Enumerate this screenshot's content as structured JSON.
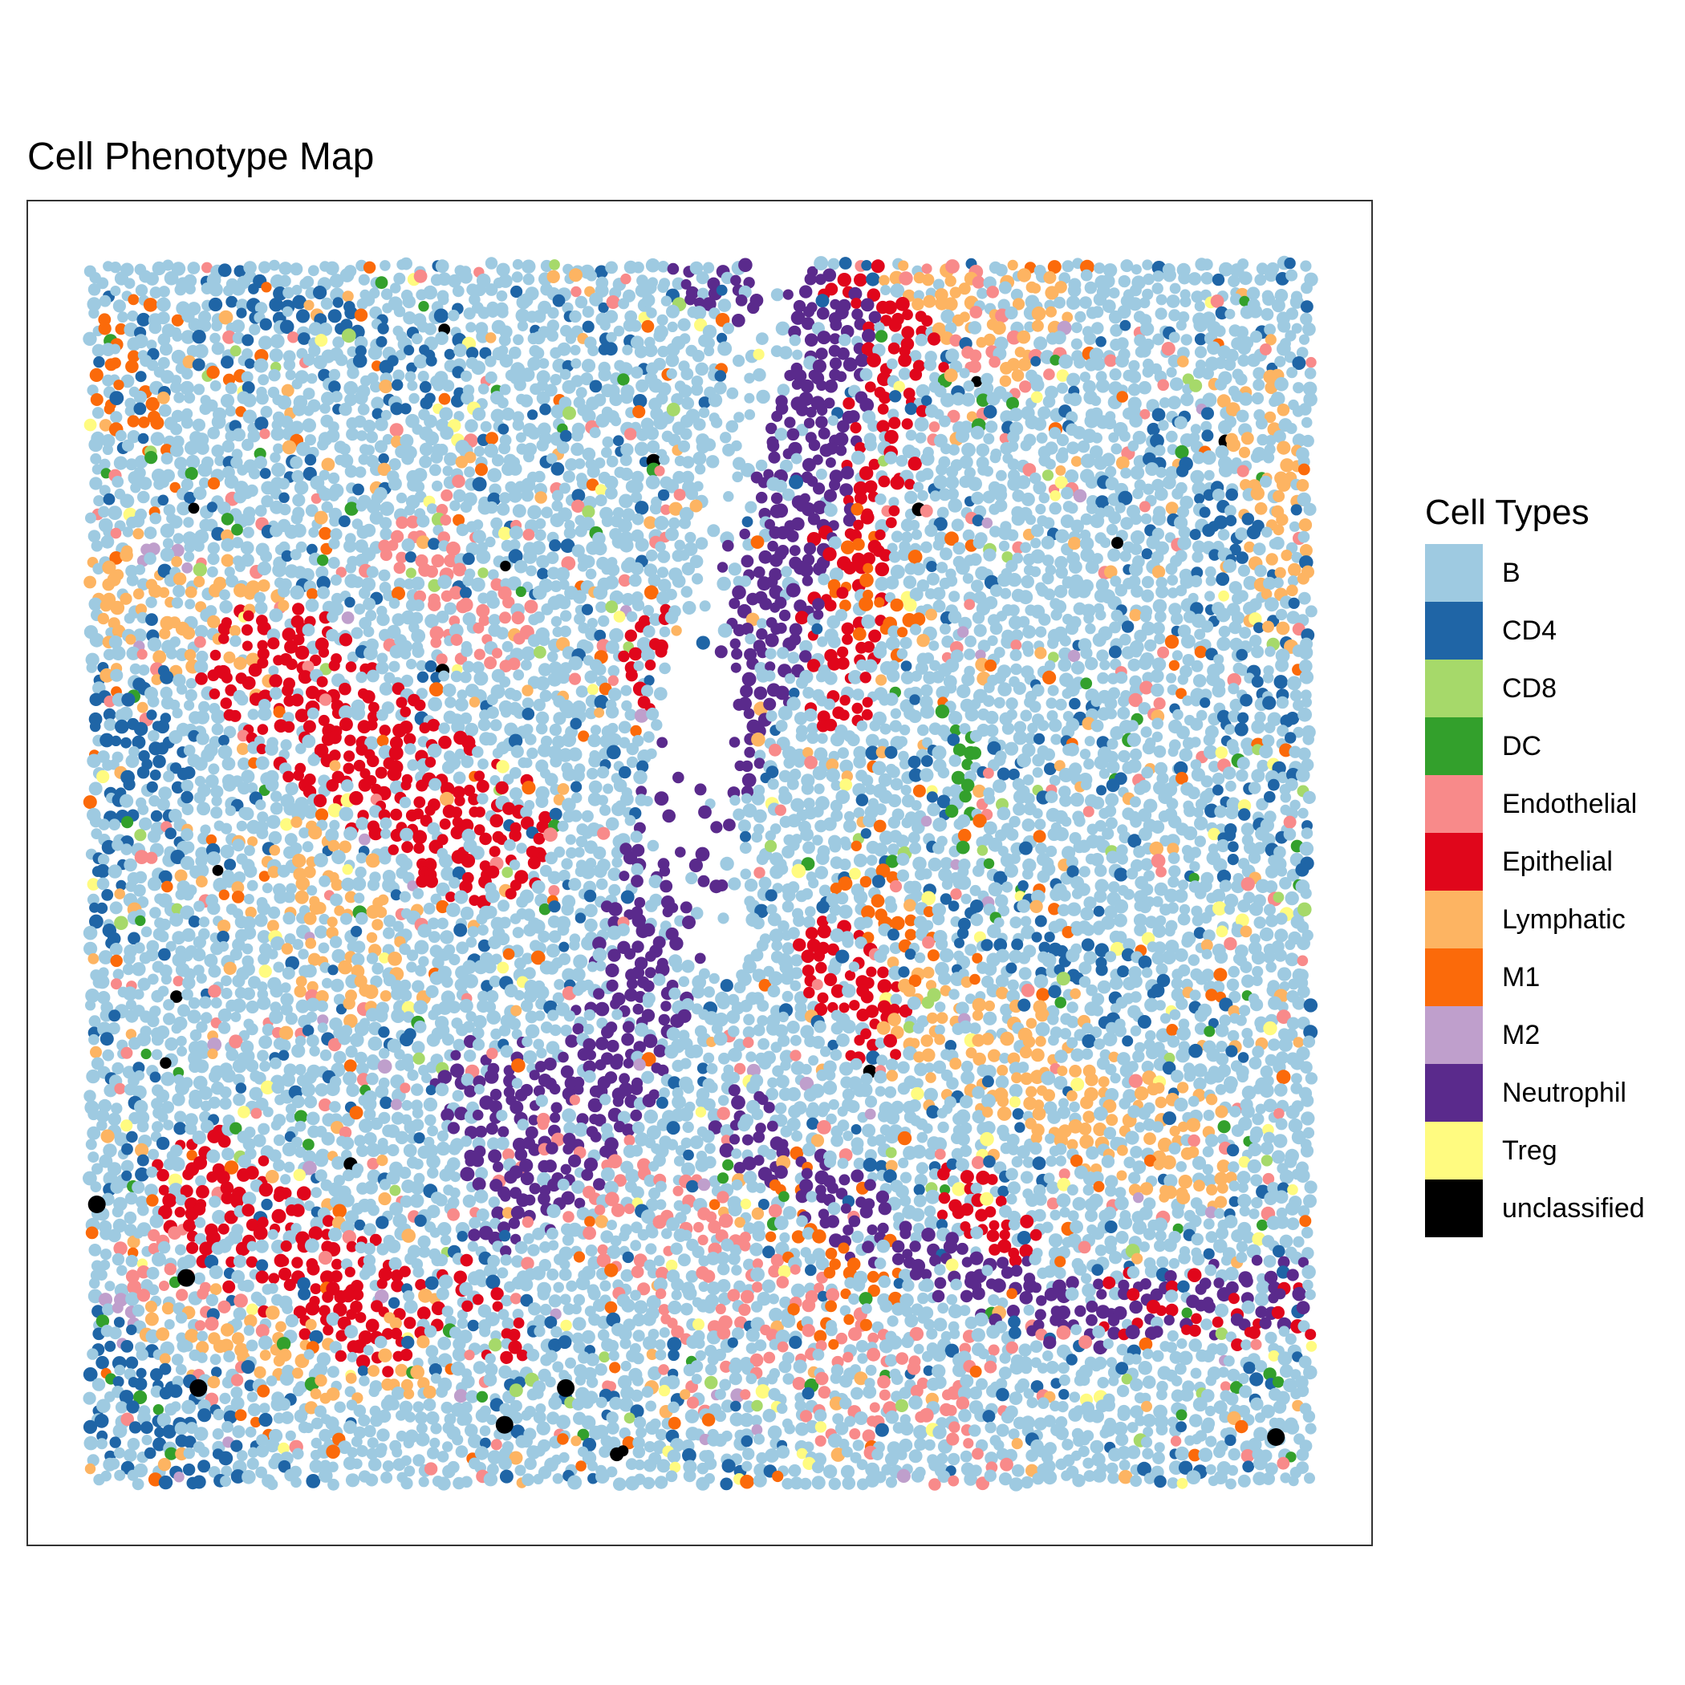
{
  "title": "Cell Phenotype Map",
  "chart_data": {
    "type": "scatter",
    "title": "Cell Phenotype Map",
    "xlabel": "",
    "ylabel": "",
    "axes_visible": false,
    "grid": false,
    "legend_position": "right",
    "legend_title": "Cell Types",
    "categories": [
      {
        "name": "B",
        "color": "#9ecae1"
      },
      {
        "name": "CD4",
        "color": "#1f65a6"
      },
      {
        "name": "CD8",
        "color": "#a6d96a"
      },
      {
        "name": "DC",
        "color": "#33a02c"
      },
      {
        "name": "Endothelial",
        "color": "#f88a8a"
      },
      {
        "name": "Epithelial",
        "color": "#e0061b"
      },
      {
        "name": "Lymphatic",
        "color": "#fdb462"
      },
      {
        "name": "M1",
        "color": "#fb6a0a"
      },
      {
        "name": "M2",
        "color": "#bf9fcc"
      },
      {
        "name": "Neutrophil",
        "color": "#5a2a8c"
      },
      {
        "name": "Treg",
        "color": "#fffb80"
      },
      {
        "name": "unclassified",
        "color": "#000000"
      }
    ],
    "base_category": "B",
    "regions": [
      {
        "category": "Neutrophil",
        "path": [
          [
            0.52,
            0.0
          ],
          [
            0.6,
            0.05
          ],
          [
            0.58,
            0.2
          ],
          [
            0.54,
            0.32
          ],
          [
            0.49,
            0.45
          ],
          [
            0.45,
            0.6
          ],
          [
            0.42,
            0.68
          ]
        ],
        "radius": 0.045,
        "density": 0.85
      },
      {
        "category": "Neutrophil",
        "path": [
          [
            0.33,
            0.68
          ],
          [
            0.38,
            0.72
          ],
          [
            0.35,
            0.76
          ]
        ],
        "radius": 0.05,
        "density": 0.8
      },
      {
        "category": "Neutrophil",
        "path": [
          [
            0.53,
            0.7
          ],
          [
            0.65,
            0.8
          ],
          [
            0.8,
            0.86
          ],
          [
            0.98,
            0.84
          ]
        ],
        "radius": 0.03,
        "density": 0.75
      },
      {
        "category": "Epithelial",
        "path": [
          [
            0.15,
            0.33
          ],
          [
            0.24,
            0.41
          ],
          [
            0.32,
            0.47
          ]
        ],
        "radius": 0.06,
        "density": 0.8
      },
      {
        "category": "Epithelial",
        "path": [
          [
            0.1,
            0.76
          ],
          [
            0.16,
            0.81
          ],
          [
            0.24,
            0.86
          ]
        ],
        "radius": 0.05,
        "density": 0.7
      },
      {
        "category": "Epithelial",
        "path": [
          [
            0.61,
            0.0
          ],
          [
            0.67,
            0.07
          ],
          [
            0.63,
            0.2
          ],
          [
            0.61,
            0.35
          ]
        ],
        "radius": 0.035,
        "density": 0.65
      },
      {
        "category": "Epithelial",
        "path": [
          [
            0.46,
            0.31
          ],
          [
            0.5,
            0.42
          ]
        ],
        "radius": 0.03,
        "density": 0.6
      },
      {
        "category": "Epithelial",
        "path": [
          [
            0.61,
            0.57
          ],
          [
            0.64,
            0.62
          ]
        ],
        "radius": 0.035,
        "density": 0.75
      },
      {
        "category": "Epithelial",
        "path": [
          [
            0.72,
            0.76
          ],
          [
            0.75,
            0.8
          ]
        ],
        "radius": 0.03,
        "density": 0.75
      },
      {
        "category": "Epithelial",
        "path": [
          [
            0.85,
            0.85
          ],
          [
            0.98,
            0.86
          ]
        ],
        "radius": 0.03,
        "density": 0.6
      },
      {
        "category": "Epithelial",
        "path": [
          [
            0.3,
            0.83
          ],
          [
            0.34,
            0.88
          ]
        ],
        "radius": 0.02,
        "density": 0.6
      },
      {
        "category": "Lymphatic",
        "path": [
          [
            0.03,
            0.28
          ],
          [
            0.12,
            0.3
          ]
        ],
        "radius": 0.06,
        "density": 0.55
      },
      {
        "category": "Lymphatic",
        "path": [
          [
            0.18,
            0.5
          ],
          [
            0.22,
            0.58
          ]
        ],
        "radius": 0.045,
        "density": 0.5
      },
      {
        "category": "Lymphatic",
        "path": [
          [
            0.67,
            0.62
          ],
          [
            0.78,
            0.67
          ],
          [
            0.9,
            0.73
          ]
        ],
        "radius": 0.05,
        "density": 0.55
      },
      {
        "category": "Lymphatic",
        "path": [
          [
            0.68,
            0.0
          ],
          [
            0.78,
            0.05
          ]
        ],
        "radius": 0.05,
        "density": 0.45
      },
      {
        "category": "Lymphatic",
        "path": [
          [
            0.96,
            0.12
          ],
          [
            0.98,
            0.28
          ]
        ],
        "radius": 0.035,
        "density": 0.5
      },
      {
        "category": "Lymphatic",
        "path": [
          [
            0.08,
            0.87
          ],
          [
            0.25,
            0.9
          ]
        ],
        "radius": 0.04,
        "density": 0.45
      },
      {
        "category": "Endothelial",
        "path": [
          [
            0.28,
            0.24
          ],
          [
            0.32,
            0.3
          ]
        ],
        "radius": 0.04,
        "density": 0.5
      },
      {
        "category": "Endothelial",
        "path": [
          [
            0.7,
            0.02
          ],
          [
            0.76,
            0.08
          ]
        ],
        "radius": 0.035,
        "density": 0.5
      },
      {
        "category": "Endothelial",
        "path": [
          [
            0.4,
            0.72
          ],
          [
            0.55,
            0.88
          ],
          [
            0.7,
            0.95
          ]
        ],
        "radius": 0.06,
        "density": 0.35
      },
      {
        "category": "Endothelial",
        "path": [
          [
            0.05,
            0.82
          ],
          [
            0.12,
            0.9
          ]
        ],
        "radius": 0.04,
        "density": 0.35
      },
      {
        "category": "M1",
        "path": [
          [
            0.6,
            0.78
          ],
          [
            0.62,
            0.84
          ]
        ],
        "radius": 0.05,
        "density": 0.45
      },
      {
        "category": "M1",
        "path": [
          [
            0.62,
            0.23
          ],
          [
            0.66,
            0.3
          ]
        ],
        "radius": 0.03,
        "density": 0.45
      },
      {
        "category": "M1",
        "path": [
          [
            0.64,
            0.52
          ],
          [
            0.7,
            0.58
          ]
        ],
        "radius": 0.03,
        "density": 0.45
      },
      {
        "category": "M1",
        "path": [
          [
            0.01,
            0.07
          ],
          [
            0.04,
            0.12
          ]
        ],
        "radius": 0.025,
        "density": 0.5
      },
      {
        "category": "CD4",
        "path": [
          [
            0.01,
            0.35
          ],
          [
            0.05,
            0.42
          ]
        ],
        "radius": 0.04,
        "density": 0.6
      },
      {
        "category": "CD4",
        "path": [
          [
            0.01,
            0.9
          ],
          [
            0.08,
            0.97
          ]
        ],
        "radius": 0.045,
        "density": 0.55
      },
      {
        "category": "CD4",
        "path": [
          [
            0.12,
            0.02
          ],
          [
            0.2,
            0.05
          ],
          [
            0.28,
            0.1
          ]
        ],
        "radius": 0.03,
        "density": 0.4
      },
      {
        "category": "CD4",
        "path": [
          [
            0.92,
            0.22
          ],
          [
            0.96,
            0.35
          ],
          [
            0.94,
            0.48
          ]
        ],
        "radius": 0.035,
        "density": 0.35
      },
      {
        "category": "CD4",
        "path": [
          [
            0.74,
            0.55
          ],
          [
            0.82,
            0.58
          ]
        ],
        "radius": 0.03,
        "density": 0.4
      },
      {
        "category": "CD4",
        "path": [
          [
            0.01,
            0.5
          ],
          [
            0.02,
            0.56
          ]
        ],
        "radius": 0.02,
        "density": 0.45
      },
      {
        "category": "M2",
        "path": [
          [
            0.06,
            0.24
          ],
          [
            0.08,
            0.26
          ]
        ],
        "radius": 0.02,
        "density": 0.35
      },
      {
        "category": "M2",
        "path": [
          [
            0.03,
            0.86
          ],
          [
            0.05,
            0.89
          ]
        ],
        "radius": 0.025,
        "density": 0.4
      },
      {
        "category": "DC",
        "path": [
          [
            0.71,
            0.4
          ],
          [
            0.72,
            0.5
          ]
        ],
        "radius": 0.02,
        "density": 0.35
      },
      {
        "category": "CD8",
        "path": [
          [
            0.66,
            0.6
          ],
          [
            0.69,
            0.62
          ]
        ],
        "radius": 0.02,
        "density": 0.45
      }
    ],
    "scatter_categories": [
      {
        "category": "CD4",
        "fraction": 0.08
      },
      {
        "category": "Endothelial",
        "fraction": 0.03
      },
      {
        "category": "Lymphatic",
        "fraction": 0.03
      },
      {
        "category": "M1",
        "fraction": 0.02
      },
      {
        "category": "Treg",
        "fraction": 0.015
      },
      {
        "category": "DC",
        "fraction": 0.012
      },
      {
        "category": "CD8",
        "fraction": 0.01
      },
      {
        "category": "M2",
        "fraction": 0.006
      },
      {
        "category": "unclassified",
        "fraction": 0.002
      }
    ],
    "empty_regions": [
      {
        "path": [
          [
            0.56,
            0.02
          ],
          [
            0.52,
            0.2
          ],
          [
            0.49,
            0.35
          ],
          [
            0.47,
            0.48
          ]
        ],
        "radius": 0.02
      },
      {
        "path": [
          [
            0.5,
            0.33
          ],
          [
            0.51,
            0.55
          ]
        ],
        "radius": 0.03
      }
    ],
    "unclassified_points": [
      [
        0.007,
        0.77
      ],
      [
        0.08,
        0.83
      ],
      [
        0.09,
        0.92
      ],
      [
        0.39,
        0.92
      ],
      [
        0.97,
        0.96
      ],
      [
        0.34,
        0.95
      ]
    ]
  }
}
